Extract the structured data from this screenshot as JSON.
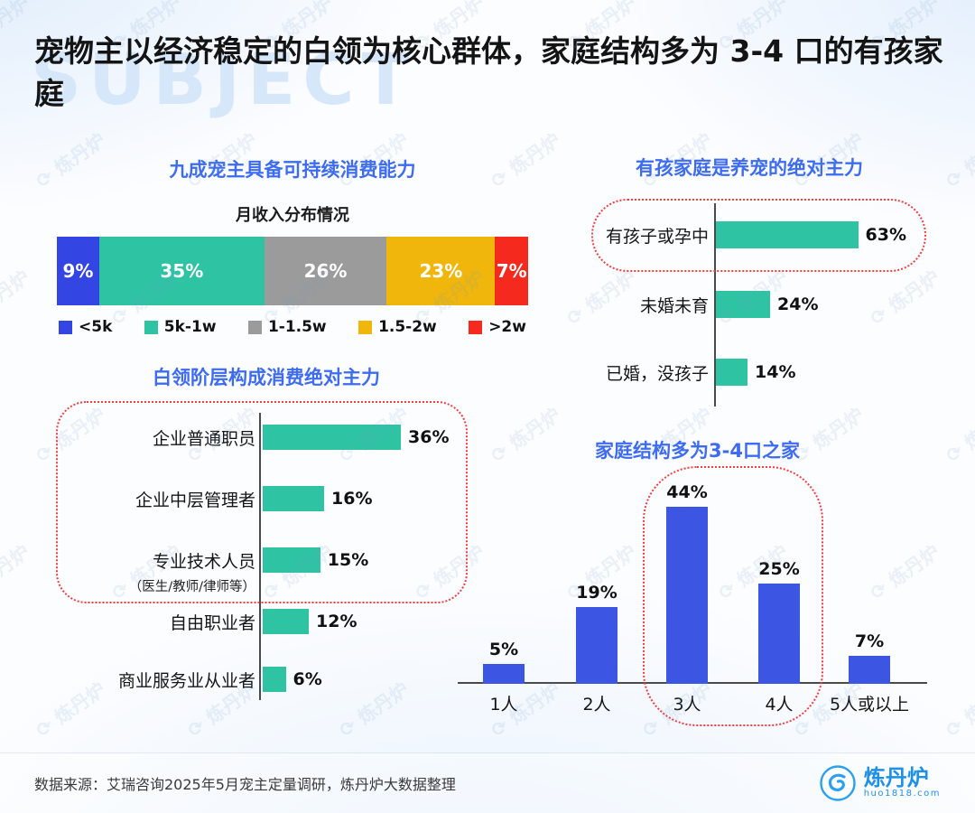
{
  "page": {
    "title": "宠物主以经济稳定的白领为核心群体，家庭结构多为 3-4 口的有孩家庭",
    "bg_watermark": "SUBJECT",
    "watermark_text": "炼丹炉"
  },
  "chart_data": [
    {
      "id": "income-distribution",
      "type": "bar",
      "variant": "stacked-horizontal",
      "title": "九成宠主具备可持续消费能力",
      "subtitle": "月收入分布情况",
      "total": 100,
      "segments": [
        {
          "label": "<5k",
          "value": 9,
          "value_label": "9%",
          "color": "#3346E3"
        },
        {
          "label": "5k-1w",
          "value": 35,
          "value_label": "35%",
          "color": "#2EC4A3"
        },
        {
          "label": "1-1.5w",
          "value": 26,
          "value_label": "26%",
          "color": "#9B9B9B"
        },
        {
          "label": "1.5-2w",
          "value": 23,
          "value_label": "23%",
          "color": "#F0B60C"
        },
        {
          "label": ">2w",
          "value": 7,
          "value_label": "7%",
          "color": "#F5291D"
        }
      ]
    },
    {
      "id": "family-status",
      "type": "bar",
      "variant": "horizontal",
      "title": "有孩家庭是养宠的绝对主力",
      "categories": [
        "有孩子或孕中",
        "未婚未育",
        "已婚，没孩子"
      ],
      "values": [
        63,
        24,
        14
      ],
      "value_labels": [
        "63%",
        "24%",
        "14%"
      ],
      "bar_color": "#2EC4A3",
      "highlight": {
        "categories": [
          "有孩子或孕中"
        ],
        "style": "red-dotted-ring"
      }
    },
    {
      "id": "occupation",
      "type": "bar",
      "variant": "horizontal",
      "title": "白领阶层构成消费绝对主力",
      "categories": [
        "企业普通职员",
        "企业中层管理者",
        "专业技术人员",
        "自由职业者",
        "商业服务业从业者"
      ],
      "category_notes": [
        "",
        "",
        "（医生/教师/律师等）",
        "",
        ""
      ],
      "values": [
        36,
        16,
        15,
        12,
        6
      ],
      "value_labels": [
        "36%",
        "16%",
        "15%",
        "12%",
        "6%"
      ],
      "bar_color": "#2EC4A3",
      "highlight": {
        "categories": [
          "企业普通职员",
          "企业中层管理者",
          "专业技术人员"
        ],
        "style": "red-dotted-ring"
      }
    },
    {
      "id": "household-size",
      "type": "bar",
      "variant": "vertical",
      "title": "家庭结构多为3-4口之家",
      "categories": [
        "1人",
        "2人",
        "3人",
        "4人",
        "5人或以上"
      ],
      "values": [
        5,
        19,
        44,
        25,
        7
      ],
      "value_labels": [
        "5%",
        "19%",
        "44%",
        "25%",
        "7%"
      ],
      "bar_color": "#3D55E3",
      "highlight": {
        "categories": [
          "3人",
          "4人"
        ],
        "style": "red-dotted-ring"
      }
    }
  ],
  "footer": {
    "source": "数据来源：艾瑞咨询2025年5月宠主定量调研，炼丹炉大数据整理",
    "logo_text": "炼丹炉",
    "logo_sub": "huo1818.com"
  },
  "colors": {
    "heading_blue": "#3D6BF2",
    "highlight_red": "#F53B3B",
    "teal": "#2EC4A3",
    "royal_blue": "#3D55E3"
  }
}
